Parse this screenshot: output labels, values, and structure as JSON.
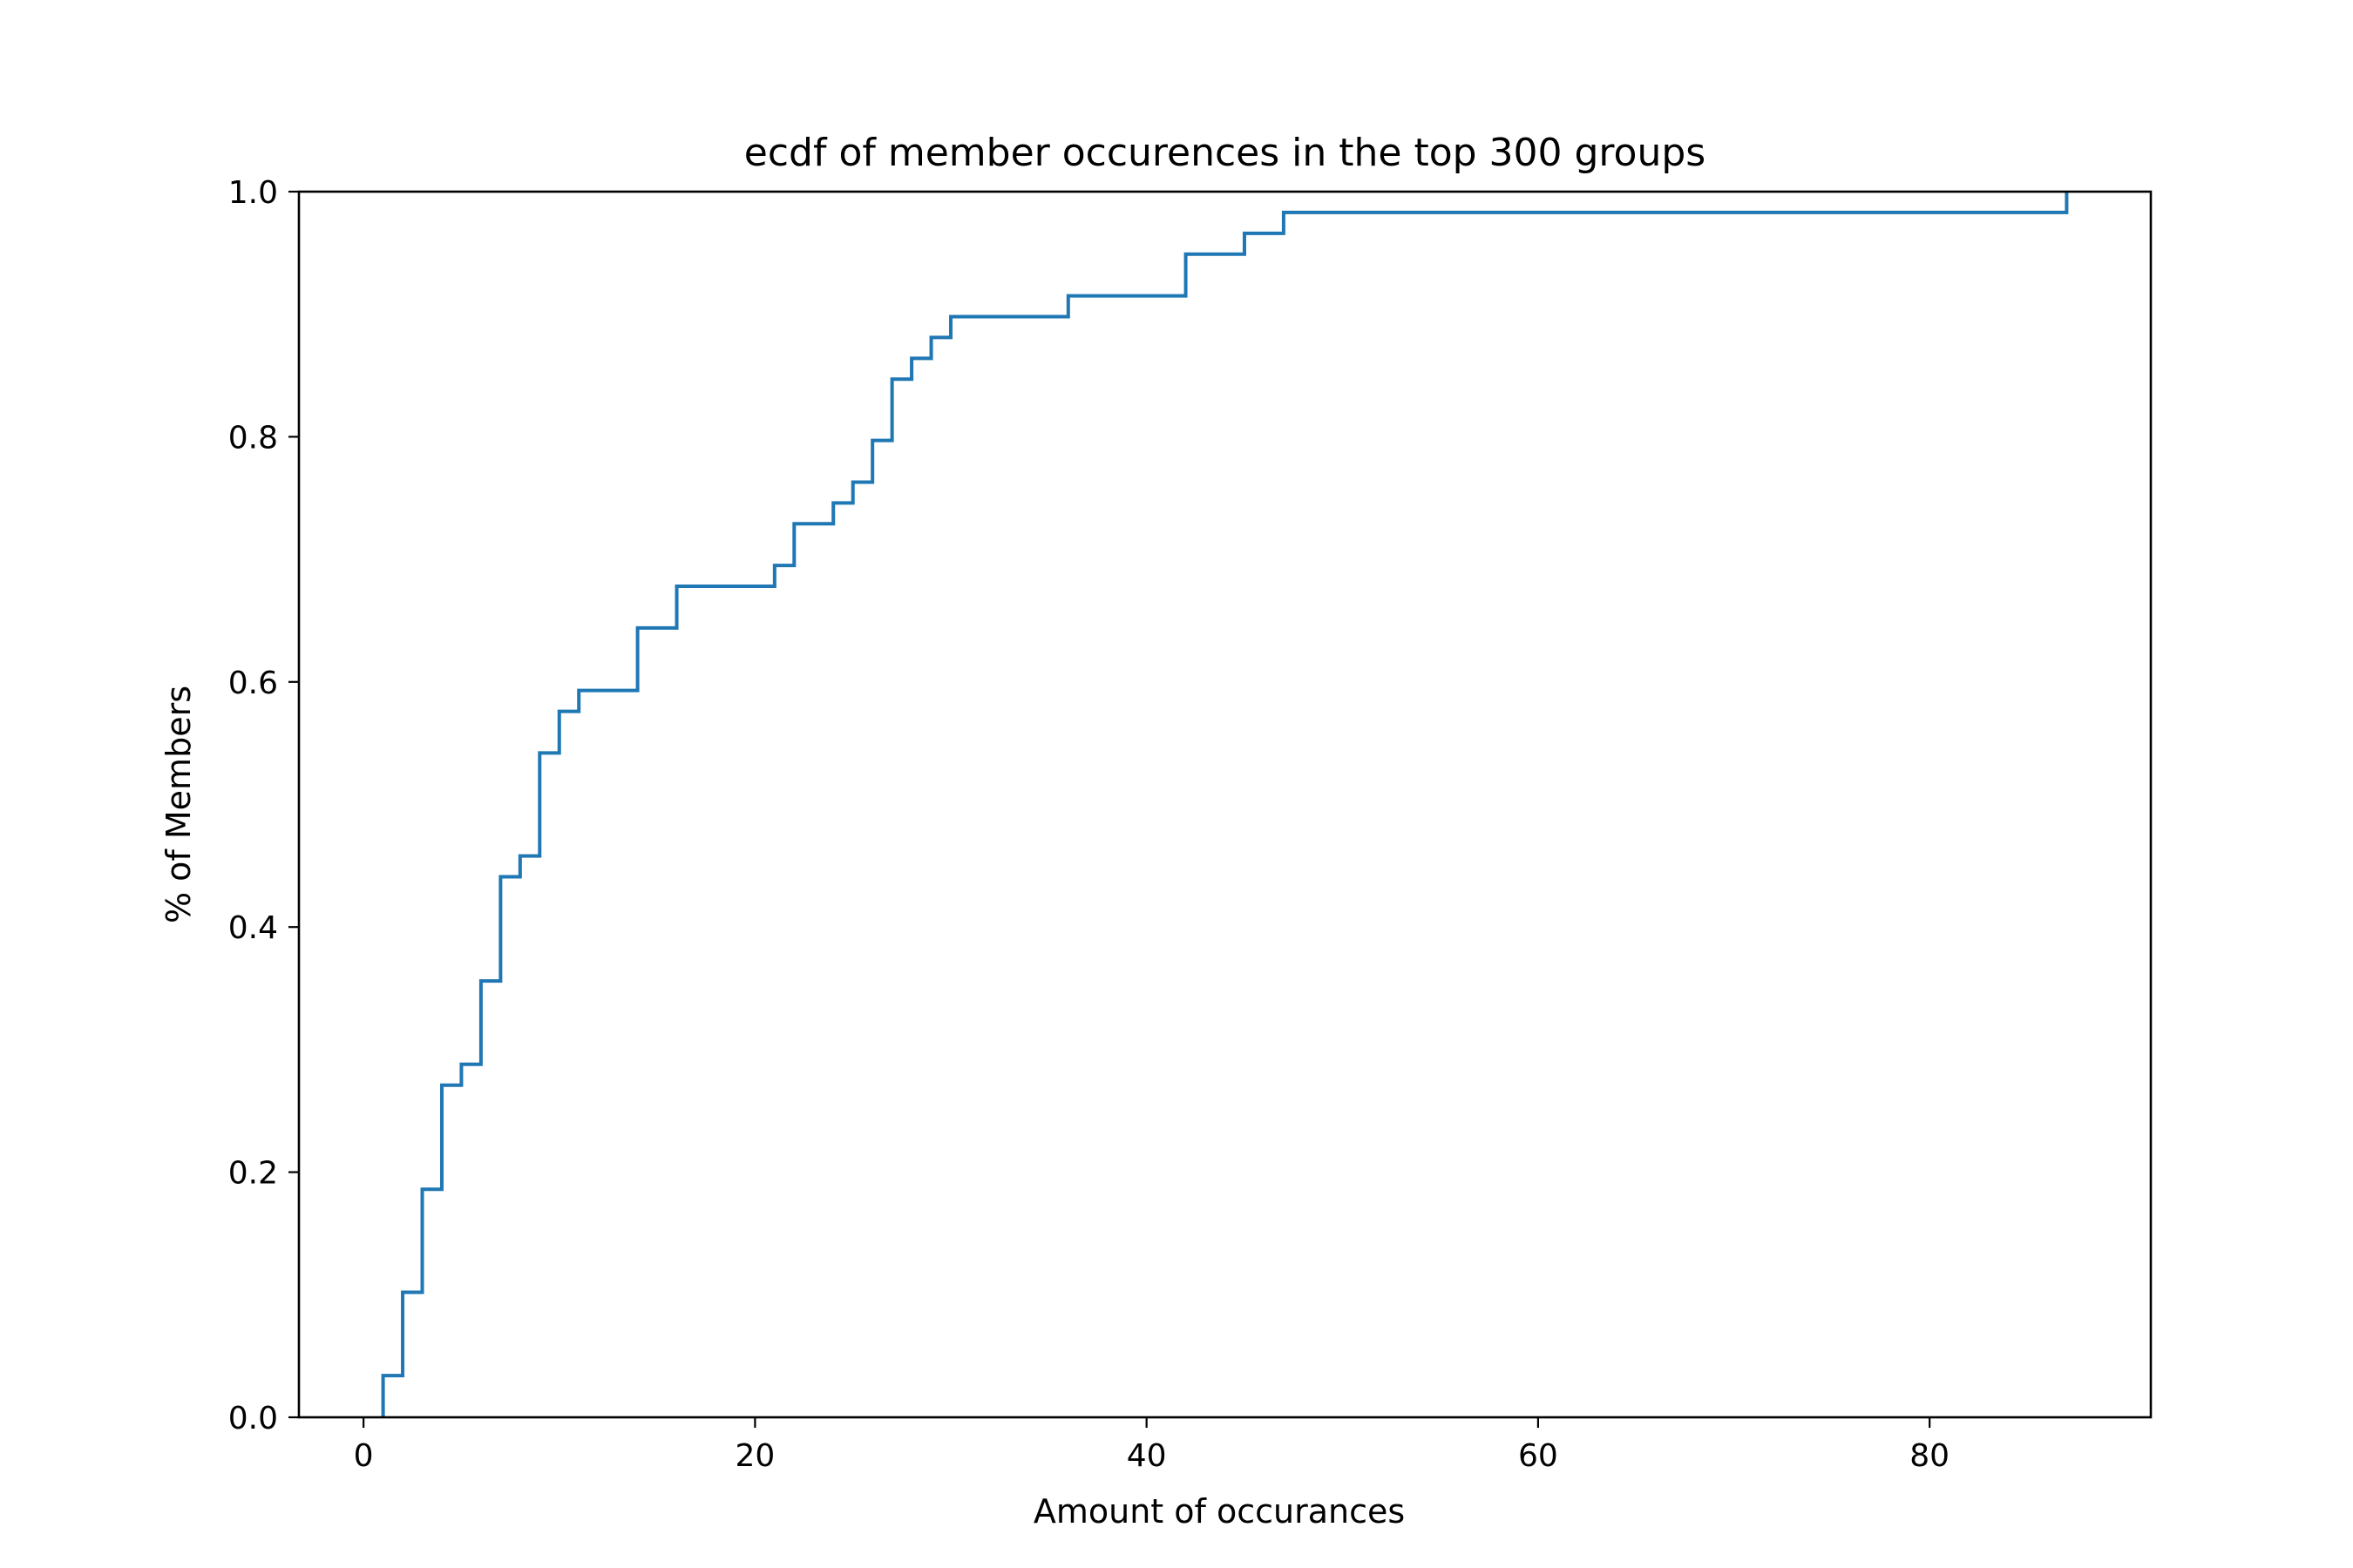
{
  "chart_data": {
    "type": "line",
    "step": "post",
    "title": "ecdf of member occurences in the top 300 groups",
    "xlabel": "Amount of occurances",
    "ylabel": "% of Members",
    "xlim": [
      -3.3,
      91.3
    ],
    "ylim": [
      0.0,
      1.0
    ],
    "xticks": [
      0,
      20,
      40,
      60,
      80
    ],
    "xtick_labels": [
      "0",
      "20",
      "40",
      "60",
      "80"
    ],
    "yticks": [
      0.0,
      0.2,
      0.4,
      0.6,
      0.8,
      1.0
    ],
    "ytick_labels": [
      "0.0",
      "0.2",
      "0.4",
      "0.6",
      "0.8",
      "1.0"
    ],
    "grid": false,
    "legend": "none",
    "series": [
      {
        "color": "#1f77b4",
        "x": [
          1,
          2,
          3,
          4,
          5,
          6,
          7,
          8,
          9,
          10,
          11,
          14,
          16,
          21,
          22,
          24,
          25,
          26,
          27,
          28,
          29,
          30,
          36,
          42,
          45,
          47,
          87
        ],
        "y": [
          0.034,
          0.102,
          0.186,
          0.271,
          0.288,
          0.356,
          0.441,
          0.458,
          0.542,
          0.576,
          0.593,
          0.644,
          0.678,
          0.695,
          0.729,
          0.746,
          0.763,
          0.797,
          0.847,
          0.864,
          0.881,
          0.898,
          0.915,
          0.949,
          0.966,
          0.983,
          1.0
        ]
      }
    ]
  }
}
